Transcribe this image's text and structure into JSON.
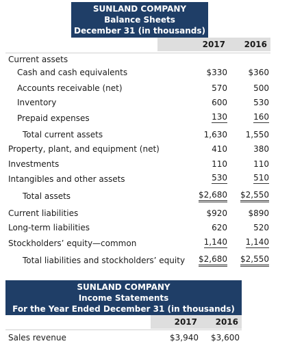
{
  "balance": {
    "company": "SUNLAND COMPANY",
    "statement": "Balance Sheets",
    "date": "December 31 (in thousands)",
    "year1": "2017",
    "year2": "2016",
    "rows": [
      {
        "label": "Current assets",
        "v1": "",
        "v2": ""
      },
      {
        "label": "Cash and cash equivalents",
        "v1": "$330",
        "v2": "$360"
      },
      {
        "label": "Accounts receivable (net)",
        "v1": "570",
        "v2": "500"
      },
      {
        "label": "Inventory",
        "v1": "600",
        "v2": "530"
      },
      {
        "label": "Prepaid expenses",
        "v1": "130",
        "v2": "160"
      },
      {
        "label": "Total current assets",
        "v1": "1,630",
        "v2": "1,550"
      },
      {
        "label": "Property, plant, and equipment (net)",
        "v1": "410",
        "v2": "380"
      },
      {
        "label": "Investments",
        "v1": "110",
        "v2": "110"
      },
      {
        "label": "Intangibles and other assets",
        "v1": "530",
        "v2": "510"
      },
      {
        "label": "Total assets",
        "v1": "$2,680",
        "v2": "$2,550"
      },
      {
        "label": "Current liabilities",
        "v1": "$920",
        "v2": "$890"
      },
      {
        "label": "Long-term liabilities",
        "v1": "620",
        "v2": "520"
      },
      {
        "label": "Stockholders’ equity—common",
        "v1": "1,140",
        "v2": "1,140"
      },
      {
        "label": "Total liabilities and stockholders’ equity",
        "v1": "$2,680",
        "v2": "$2,550"
      }
    ]
  },
  "income": {
    "company": "SUNLAND COMPANY",
    "statement": "Income Statements",
    "period": "For the Year Ended December 31 (in thousands)",
    "year1": "2017",
    "year2": "2016",
    "rows": [
      {
        "label": "Sales revenue",
        "v1": "$3,940",
        "v2": "$3,600"
      }
    ]
  }
}
